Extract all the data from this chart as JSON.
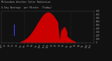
{
  "bg_color": "#111111",
  "text_color": "#aaaaaa",
  "solar_color": "#cc0000",
  "blue_bar_color": "#4444ff",
  "legend_red": "#cc0000",
  "legend_blue": "#2222cc",
  "ylim": [
    0,
    900
  ],
  "xlim": [
    0,
    1439
  ],
  "rise_start": 300,
  "set_end": 1150,
  "peak_minute": 745,
  "peak_value": 870,
  "avg_bar_minute": 195,
  "avg_bar_ymin": 0.25,
  "avg_bar_ymax": 0.58,
  "grid_lines": [
    360,
    720,
    1080
  ],
  "yticks": [
    0,
    100,
    200,
    300,
    400,
    500,
    600,
    700,
    800,
    900
  ],
  "title_line1": "Milwaukee Weather Solar Radiation",
  "title_line2": "& Day Average  per Minute  (Today)"
}
